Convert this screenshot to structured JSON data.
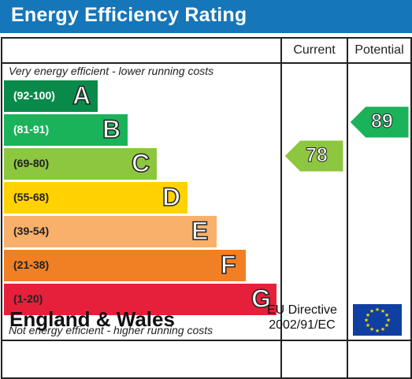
{
  "title": "Energy Efficiency Rating",
  "columns": {
    "current": "Current",
    "potential": "Potential"
  },
  "captions": {
    "top": "Very energy efficient - lower running costs",
    "bottom": "Not energy efficient - higher running costs"
  },
  "bands": [
    {
      "range": "(92-100)",
      "letter": "A",
      "color": "#0a8a4a",
      "range_color": "#ffffff"
    },
    {
      "range": "(81-91)",
      "letter": "B",
      "color": "#1bb35a",
      "range_color": "#ffffff"
    },
    {
      "range": "(69-80)",
      "letter": "C",
      "color": "#8dc63f",
      "range_color": "#222222"
    },
    {
      "range": "(55-68)",
      "letter": "D",
      "color": "#ffd200",
      "range_color": "#222222"
    },
    {
      "range": "(39-54)",
      "letter": "E",
      "color": "#f8b06b",
      "range_color": "#222222"
    },
    {
      "range": "(21-38)",
      "letter": "F",
      "color": "#f08023",
      "range_color": "#222222"
    },
    {
      "range": "(1-20)",
      "letter": "G",
      "color": "#e6203a",
      "range_color": "#222222"
    }
  ],
  "current": {
    "value": "78",
    "color": "#8dc63f"
  },
  "potential": {
    "value": "89",
    "color": "#1bb35a"
  },
  "footer": {
    "region": "England & Wales",
    "directive_line1": "EU Directive",
    "directive_line2": "2002/91/EC"
  }
}
